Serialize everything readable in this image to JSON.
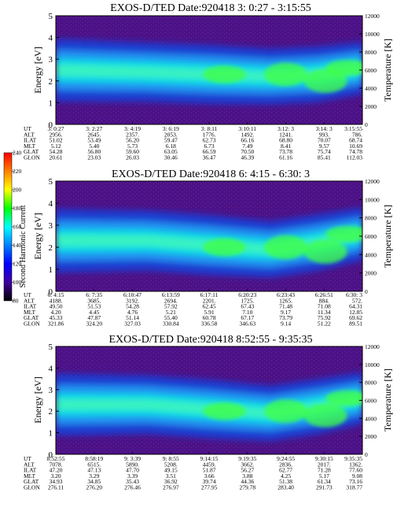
{
  "panels": [
    {
      "title": "EXOS-D/TED   Date:920418   3: 0:27 - 3:15:55",
      "ylabel": "Energy [eV]",
      "ylabel2": "Temperature [K]",
      "ylim": [
        0,
        5
      ],
      "yticks": [
        "0",
        "1",
        "2",
        "3",
        "4",
        "5"
      ],
      "y2lim": [
        0,
        12000
      ],
      "y2ticks": [
        "0",
        "2000",
        "4000",
        "6000",
        "8000",
        "10000",
        "12000"
      ],
      "band": [
        [
          0,
          2.5,
          0.9
        ],
        [
          0.3,
          2.4,
          0.85
        ],
        [
          0.5,
          2.3,
          0.85
        ],
        [
          0.7,
          2.2,
          0.8
        ],
        [
          0.85,
          2.3,
          0.8
        ],
        [
          1,
          2.6,
          0.75
        ]
      ],
      "hot": [
        [
          0.55,
          0.45,
          2.3
        ],
        [
          0.75,
          0.6,
          2.3
        ],
        [
          0.88,
          0.6,
          2.0
        ],
        [
          0.95,
          0.4,
          2.6
        ]
      ],
      "rows": [
        {
          "label": "UT",
          "values": [
            "3: 0:27",
            "3: 2:27",
            "3: 4:19",
            "3: 6:19",
            "3: 8:11",
            "3:10:11",
            "3:12: 3",
            "3:14: 3",
            "3:15:55"
          ]
        },
        {
          "label": "ALT",
          "values": [
            "2956.",
            "2645.",
            "2357.",
            "2053.",
            "1776.",
            "1492.",
            "1241.",
            "993.",
            "786."
          ]
        },
        {
          "label": "ILAT",
          "values": [
            "51.02",
            "53.49",
            "56.20",
            "59.47",
            "62.73",
            "66.16",
            "68.80",
            "70.07",
            "68.74"
          ]
        },
        {
          "label": "MLT",
          "values": [
            "5.12",
            "5.40",
            "5.73",
            "6.18",
            "6.73",
            "7.49",
            "8.41",
            "9.57",
            "10.69"
          ]
        },
        {
          "label": "GLAT",
          "values": [
            "54.28",
            "56.80",
            "59.60",
            "63.05",
            "66.59",
            "70.50",
            "73.78",
            "75.74",
            "74.78"
          ]
        },
        {
          "label": "GLON",
          "values": [
            "20.61",
            "23.03",
            "26.03",
            "30.46",
            "36.47",
            "46.39",
            "61.16",
            "85.41",
            "112.03"
          ]
        }
      ]
    },
    {
      "title": "EXOS-D/TED   Date:920418   6: 4:15 - 6:30: 3",
      "ylabel": "Energy [eV]",
      "ylabel2": "Temperature [K]",
      "ylim": [
        0,
        5
      ],
      "yticks": [
        "0",
        "1",
        "2",
        "3",
        "4",
        "5"
      ],
      "y2lim": [
        0,
        12000
      ],
      "y2ticks": [
        "0",
        "2000",
        "4000",
        "6000",
        "8000",
        "10000",
        "12000"
      ],
      "band": [
        [
          0,
          2.3,
          0.9
        ],
        [
          0.3,
          2.3,
          0.85
        ],
        [
          0.5,
          2.1,
          0.85
        ],
        [
          0.7,
          1.9,
          0.8
        ],
        [
          0.85,
          2.2,
          0.8
        ],
        [
          1,
          2.6,
          0.75
        ]
      ],
      "hot": [
        [
          0.55,
          0.45,
          2.0
        ],
        [
          0.75,
          0.6,
          2.0
        ],
        [
          0.88,
          0.6,
          1.8
        ],
        [
          0.95,
          0.4,
          2.6
        ]
      ],
      "rows": [
        {
          "label": "UT",
          "values": [
            "6: 4:15",
            "6: 7:35",
            "6:10:47",
            "6:13:59",
            "6:17:11",
            "6:20:23",
            "6:23:43",
            "6:26:51",
            "6:30: 3"
          ]
        },
        {
          "label": "ALT",
          "values": [
            "4188.",
            "3685.",
            "3192.",
            "2694.",
            "2201.",
            "1725.",
            "1265.",
            "884.",
            "572."
          ]
        },
        {
          "label": "ILAT",
          "values": [
            "49.50",
            "51.53",
            "54.28",
            "57.92",
            "62.45",
            "67.43",
            "71.48",
            "71.08",
            "64.31"
          ]
        },
        {
          "label": "MLT",
          "values": [
            "4.20",
            "4.45",
            "4.76",
            "5.21",
            "5.91",
            "7.10",
            "9.17",
            "11.34",
            "12.85"
          ]
        },
        {
          "label": "GLAT",
          "values": [
            "45.33",
            "47.87",
            "51.14",
            "55.40",
            "60.78",
            "67.17",
            "73.79",
            "75.92",
            "69.62"
          ]
        },
        {
          "label": "GLON",
          "values": [
            "321.86",
            "324.20",
            "327.03",
            "330.84",
            "336.58",
            "346.63",
            "9.14",
            "51.22",
            "89.51"
          ]
        }
      ]
    },
    {
      "title": "EXOS-D/TED   Date:920418   8:52:55 - 9:35:35",
      "ylabel": "Energy [eV]",
      "ylabel2": "Temperature [K]",
      "ylim": [
        0,
        5
      ],
      "yticks": [
        "0",
        "1",
        "2",
        "3",
        "4",
        "5"
      ],
      "y2lim": [
        0,
        12000
      ],
      "y2ticks": [
        "0",
        "2000",
        "4000",
        "6000",
        "8000",
        "10000",
        "12000"
      ],
      "band": [
        [
          0,
          2.3,
          0.9
        ],
        [
          0.3,
          2.3,
          0.85
        ],
        [
          0.5,
          2.1,
          0.85
        ],
        [
          0.7,
          1.9,
          0.8
        ],
        [
          0.85,
          2.2,
          0.8
        ],
        [
          1,
          2.6,
          0.75
        ]
      ],
      "hot": [
        [
          0.55,
          0.45,
          2.0
        ],
        [
          0.75,
          0.6,
          2.0
        ],
        [
          0.88,
          0.6,
          1.8
        ],
        [
          0.95,
          0.4,
          2.6
        ]
      ],
      "rows": [
        {
          "label": "UT",
          "values": [
            "8:52:55",
            "8:58:19",
            "9: 3:39",
            "9: 8:55",
            "9:14:15",
            "9:19:35",
            "9:24:55",
            "9:30:15",
            "9:35:35"
          ]
        },
        {
          "label": "ALT",
          "values": [
            "7078.",
            "6515.",
            "5890.",
            "5208.",
            "4459.",
            "3662.",
            "2836.",
            "2017.",
            "1362."
          ]
        },
        {
          "label": "ILAT",
          "values": [
            "47.20",
            "47.13",
            "47.70",
            "49.15",
            "51.87",
            "56.27",
            "62.77",
            "71.28",
            "77.60"
          ]
        },
        {
          "label": "MLT",
          "values": [
            "3.20",
            "3.29",
            "3.39",
            "3.51",
            "3.66",
            "3.88",
            "4.25",
            "5.17",
            "9.08"
          ]
        },
        {
          "label": "GLAT",
          "values": [
            "34.93",
            "34.85",
            "35.43",
            "36.92",
            "39.74",
            "44.36",
            "51.38",
            "61.34",
            "73.16"
          ]
        },
        {
          "label": "GLON",
          "values": [
            "276.11",
            "276.20",
            "276.46",
            "276.97",
            "277.95",
            "279.78",
            "283.40",
            "291.73",
            "318.77"
          ]
        }
      ]
    }
  ],
  "colorbar": {
    "label": "Second Harmonic Current",
    "range": [
      80,
      240
    ],
    "ticks": [
      "240",
      "220",
      "200",
      "180",
      "160",
      "140",
      "120",
      "100",
      "80"
    ],
    "colors": [
      "#ff0000",
      "#ff8000",
      "#ffff00",
      "#00ff00",
      "#00ffff",
      "#0080ff",
      "#0000ff",
      "#4000a0",
      "#000000"
    ]
  }
}
